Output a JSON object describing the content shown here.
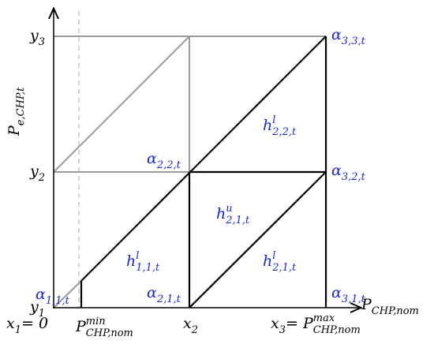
{
  "axes": {
    "y_label": [
      {
        "text": "P"
      },
      {
        "sub": "e,CHP,t"
      }
    ],
    "x_label": [
      {
        "text": "P"
      },
      {
        "sub": "CHP,nom"
      }
    ]
  },
  "y_ticks": [
    [
      {
        "text": "y"
      },
      {
        "sub": "1"
      }
    ],
    [
      {
        "text": "y"
      },
      {
        "sub": "2"
      }
    ],
    [
      {
        "text": "y"
      },
      {
        "sub": "3"
      }
    ]
  ],
  "x_ticks": [
    [
      {
        "text": "x"
      },
      {
        "sub": "1"
      },
      {
        "text": " = 0"
      }
    ],
    [
      {
        "text": "P"
      },
      {
        "sup": "min"
      },
      {
        "sub": "CHP,nom"
      }
    ],
    [
      {
        "text": "x"
      },
      {
        "sub": "2"
      }
    ],
    [
      {
        "text": "x"
      },
      {
        "sub": "3"
      },
      {
        "text": " = P"
      },
      {
        "sup": "max"
      },
      {
        "sub": "CHP,nom"
      }
    ]
  ],
  "points": [
    [
      {
        "text": "α"
      },
      {
        "sub": "1,1,t"
      }
    ],
    [
      {
        "text": "α"
      },
      {
        "sub": "2,2,t"
      }
    ],
    [
      {
        "text": "α"
      },
      {
        "sub": "2,1,t"
      }
    ],
    [
      {
        "text": "α"
      },
      {
        "sub": "3,3,t"
      }
    ],
    [
      {
        "text": "α"
      },
      {
        "sub": "3,2,t"
      }
    ],
    [
      {
        "text": "α"
      },
      {
        "sub": "3,1,t"
      }
    ]
  ],
  "regions": [
    [
      {
        "text": "h"
      },
      {
        "sup": "l"
      },
      {
        "sub": "2,2,t"
      }
    ],
    [
      {
        "text": "h"
      },
      {
        "sup": "u"
      },
      {
        "sub": "2,1,t"
      }
    ],
    [
      {
        "text": "h"
      },
      {
        "sup": "l"
      },
      {
        "sub": "1,1,t"
      }
    ],
    [
      {
        "text": "h"
      },
      {
        "sup": "l"
      },
      {
        "sub": "2,1,t"
      }
    ]
  ]
}
